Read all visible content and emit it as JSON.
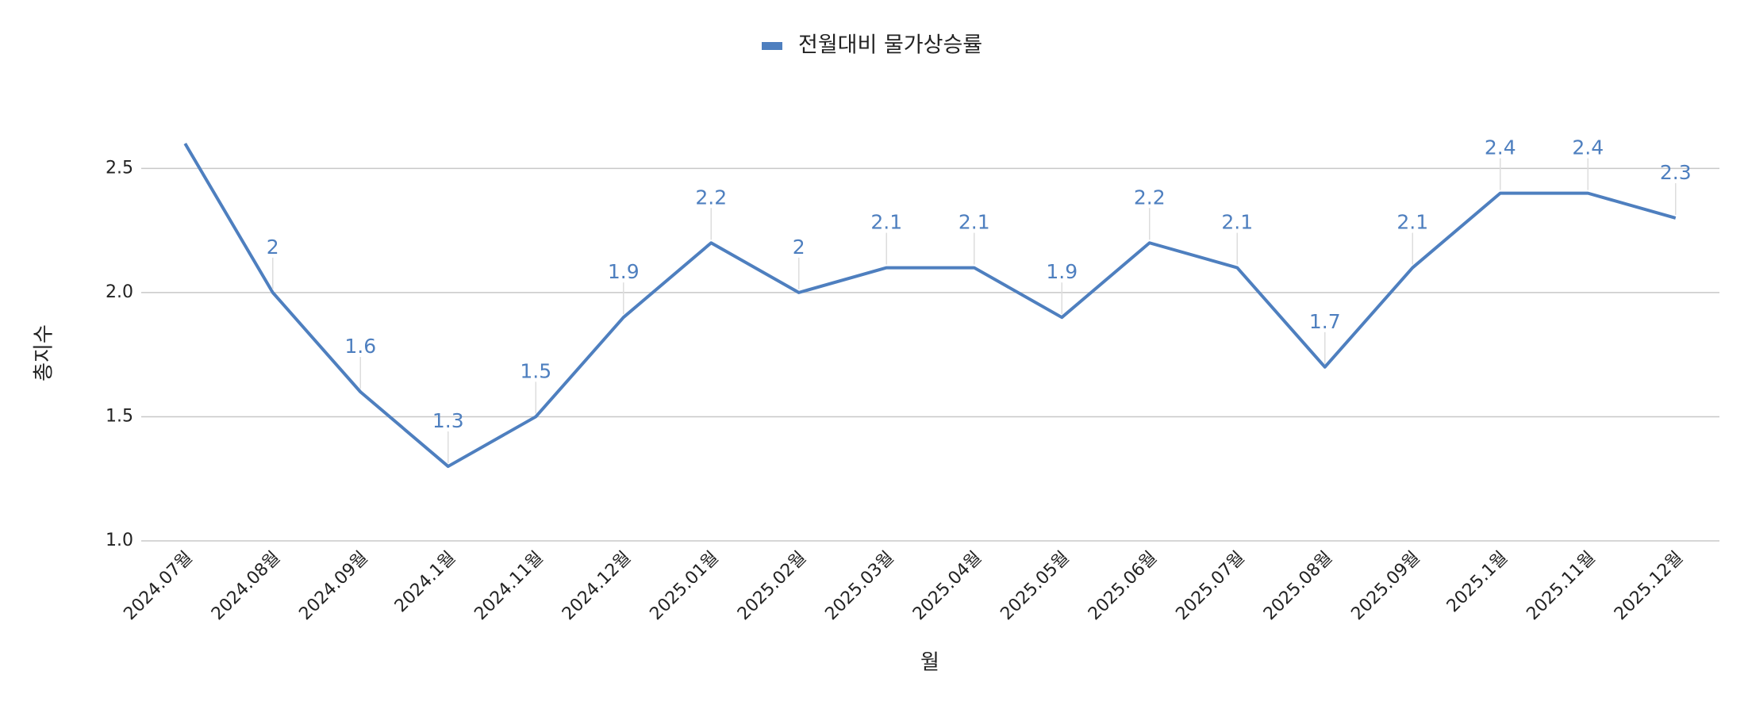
{
  "chart_data": {
    "type": "line",
    "legend_position": "top",
    "x_label": "월",
    "y_label": "총지수",
    "categories": [
      "2024.07월",
      "2024.08월",
      "2024.09월",
      "2024.1월",
      "2024.11월",
      "2024.12월",
      "2025.01월",
      "2025.02월",
      "2025.03월",
      "2025.04월",
      "2025.05월",
      "2025.06월",
      "2025.07월",
      "2025.08월",
      "2025.09월",
      "2025.1월",
      "2025.11월",
      "2025.12월"
    ],
    "series": [
      {
        "name": "전월대비 물가상승률",
        "color": "#4e7fbf",
        "values": [
          2.6,
          2,
          1.6,
          1.3,
          1.5,
          1.9,
          2.2,
          2,
          2.1,
          2.1,
          1.9,
          2.2,
          2.1,
          1.7,
          2.1,
          2.4,
          2.4,
          2.3
        ],
        "value_labels": [
          null,
          "2",
          "1.6",
          "1.3",
          "1.5",
          "1.9",
          "2.2",
          "2",
          "2.1",
          "2.1",
          "1.9",
          "2.2",
          "2.1",
          "1.7",
          "2.1",
          "2.4",
          "2.4",
          "2.3"
        ]
      }
    ],
    "ylim": [
      1,
      2.6
    ],
    "yticks": [
      {
        "value": 1,
        "label": "1.0"
      },
      1.5,
      {
        "value": 2,
        "label": "2.0"
      },
      2.5
    ],
    "grid": true
  }
}
